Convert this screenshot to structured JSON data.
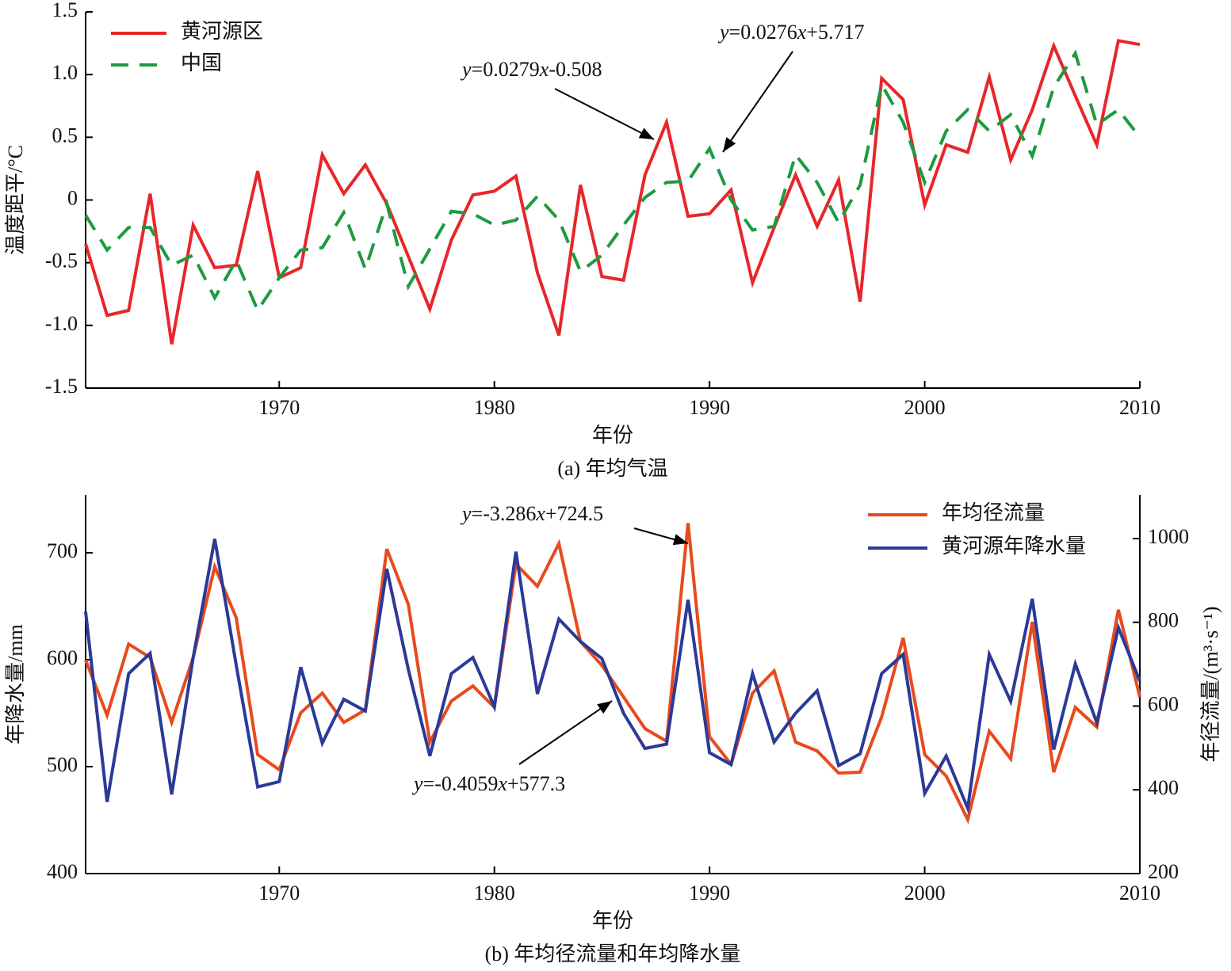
{
  "chart_data": [
    {
      "type": "line",
      "caption": "(a) 年均气温",
      "xlabel": "年份",
      "ylabel": "温度距平/°C",
      "x": [
        1961,
        1962,
        1963,
        1964,
        1965,
        1966,
        1967,
        1968,
        1969,
        1970,
        1971,
        1972,
        1973,
        1974,
        1975,
        1976,
        1977,
        1978,
        1979,
        1980,
        1981,
        1982,
        1983,
        1984,
        1985,
        1986,
        1987,
        1988,
        1989,
        1990,
        1991,
        1992,
        1993,
        1994,
        1995,
        1996,
        1997,
        1998,
        1999,
        2000,
        2001,
        2002,
        2003,
        2004,
        2005,
        2006,
        2007,
        2008,
        2009,
        2010
      ],
      "series": [
        {
          "name": "黄河源区",
          "color": "#e8262a",
          "dash": false,
          "values": [
            -0.35,
            -0.92,
            -0.88,
            0.05,
            -1.15,
            -0.2,
            -0.54,
            -0.52,
            0.23,
            -0.62,
            -0.54,
            0.36,
            0.05,
            0.28,
            -0.03,
            -0.45,
            -0.87,
            -0.32,
            0.04,
            0.07,
            0.19,
            -0.58,
            -1.08,
            0.12,
            -0.61,
            -0.64,
            0.2,
            0.62,
            -0.13,
            -0.11,
            0.08,
            -0.66,
            -0.22,
            0.2,
            -0.21,
            0.16,
            -0.81,
            0.97,
            0.8,
            -0.04,
            0.44,
            0.38,
            0.98,
            0.32,
            0.72,
            1.23,
            0.83,
            0.44,
            1.27,
            1.24
          ]
        },
        {
          "name": "中国",
          "color": "#1e9a40",
          "dash": true,
          "values": [
            -0.12,
            -0.4,
            -0.22,
            -0.22,
            -0.52,
            -0.44,
            -0.78,
            -0.48,
            -0.88,
            -0.62,
            -0.4,
            -0.38,
            -0.1,
            -0.55,
            -0.03,
            -0.69,
            -0.39,
            -0.09,
            -0.11,
            -0.2,
            -0.16,
            0.03,
            -0.16,
            -0.57,
            -0.44,
            -0.2,
            0.02,
            0.14,
            0.15,
            0.41,
            0.0,
            -0.24,
            -0.21,
            0.36,
            0.14,
            -0.18,
            0.12,
            0.92,
            0.62,
            0.14,
            0.55,
            0.72,
            0.55,
            0.68,
            0.35,
            0.9,
            1.17,
            0.6,
            0.72,
            0.5
          ]
        }
      ],
      "xlim": [
        1961,
        2010
      ],
      "xticks": [
        1970,
        1980,
        1990,
        2000,
        2010
      ],
      "ylim": [
        -1.5,
        1.5
      ],
      "yticks": [
        -1.5,
        -0.5,
        {
          "value": -1,
          "label": "-1.0"
        },
        0,
        0.5,
        {
          "value": 1,
          "label": "1.0"
        },
        1.5
      ],
      "legend": "upper left",
      "annotations": [
        {
          "text": "y=0.0279x-0.508"
        },
        {
          "text": "y=0.0276x+5.717"
        }
      ]
    },
    {
      "type": "line",
      "caption": "(b) 年均径流量和年均降水量",
      "xlabel": "年份",
      "ylabel": "年降水量/mm",
      "y2label": "年径流量/(m³·s⁻¹)",
      "x": [
        1961,
        1962,
        1963,
        1964,
        1965,
        1966,
        1967,
        1968,
        1969,
        1970,
        1971,
        1972,
        1973,
        1974,
        1975,
        1976,
        1977,
        1978,
        1979,
        1980,
        1981,
        1982,
        1983,
        1984,
        1985,
        1986,
        1987,
        1988,
        1989,
        1990,
        1991,
        1992,
        1993,
        1994,
        1995,
        1996,
        1997,
        1998,
        1999,
        2000,
        2001,
        2002,
        2003,
        2004,
        2005,
        2006,
        2007,
        2008,
        2009,
        2010
      ],
      "series": [
        {
          "name": "年均径流量",
          "color": "#e84a1e",
          "dash": false,
          "axis": "y2",
          "values": [
            710,
            578,
            748,
            716,
            561,
            716,
            933,
            811,
            484,
            448,
            584,
            631,
            561,
            591,
            975,
            843,
            514,
            612,
            648,
            597,
            939,
            886,
            988,
            754,
            697,
            622,
            546,
            516,
            1037,
            527,
            461,
            631,
            684,
            514,
            493,
            440,
            442,
            574,
            763,
            484,
            433,
            329,
            540,
            474,
            801,
            442,
            597,
            550,
            830,
            622
          ]
        },
        {
          "name": "黄河源年降水量",
          "color": "#2b3a98",
          "dash": false,
          "values": [
            645,
            467,
            587,
            606,
            474,
            602,
            713,
            595,
            481,
            486,
            593,
            522,
            563,
            552,
            685,
            591,
            510,
            587,
            602,
            556,
            701,
            568,
            638,
            617,
            601,
            550,
            517,
            521,
            656,
            513,
            502,
            587,
            523,
            550,
            571,
            501,
            512,
            587,
            605,
            475,
            510,
            461,
            605,
            561,
            657,
            516,
            596,
            541,
            630,
            580
          ]
        }
      ],
      "xlim": [
        1961,
        2010
      ],
      "xticks": [
        1970,
        1980,
        1990,
        2000,
        2010
      ],
      "ylim": [
        400,
        754
      ],
      "yticks": [
        400,
        500,
        600,
        700
      ],
      "y2lim": [
        200,
        1104
      ],
      "y2ticks": [
        200,
        400,
        600,
        800,
        1000
      ],
      "legend": "upper right",
      "annotations": [
        {
          "text": "y=-3.286x+724.5"
        },
        {
          "text": "y=-0.4059x+577.3"
        }
      ]
    }
  ]
}
